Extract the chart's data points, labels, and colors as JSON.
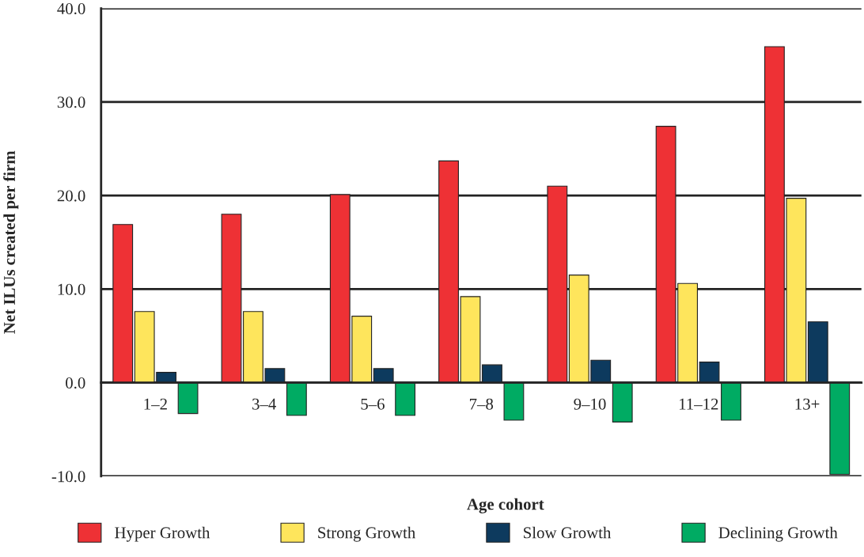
{
  "chart_data": {
    "type": "bar",
    "xlabel": "Age cohort",
    "ylabel": "Net ILUs created per firm",
    "categories": [
      "1–2",
      "3–4",
      "5–6",
      "7–8",
      "9–10",
      "11–12",
      "13+"
    ],
    "series": [
      {
        "name": "Hyper Growth",
        "color": "#ee3135",
        "values": [
          16.9,
          18.0,
          20.1,
          23.7,
          21.0,
          27.4,
          35.9
        ]
      },
      {
        "name": "Strong Growth",
        "color": "#fee55c",
        "values": [
          7.6,
          7.6,
          7.1,
          9.2,
          11.5,
          10.6,
          19.7
        ]
      },
      {
        "name": "Slow Growth",
        "color": "#0d3a5e",
        "values": [
          1.1,
          1.5,
          1.5,
          1.9,
          2.4,
          2.2,
          6.5
        ]
      },
      {
        "name": "Declining Growth",
        "color": "#00ab63",
        "values": [
          -3.3,
          -3.5,
          -3.5,
          -4.0,
          -4.2,
          -4.0,
          -9.8
        ]
      }
    ],
    "ylim": [
      -10,
      40
    ],
    "yticks": [
      {
        "value": -10,
        "label": "-10.0"
      },
      {
        "value": 0,
        "label": "0.0"
      },
      {
        "value": 10,
        "label": "10.0"
      },
      {
        "value": 20,
        "label": "20.0"
      },
      {
        "value": 30,
        "label": "30.0"
      },
      {
        "value": 40,
        "label": "40.0"
      }
    ],
    "grid": "y",
    "legend": "bottom"
  }
}
